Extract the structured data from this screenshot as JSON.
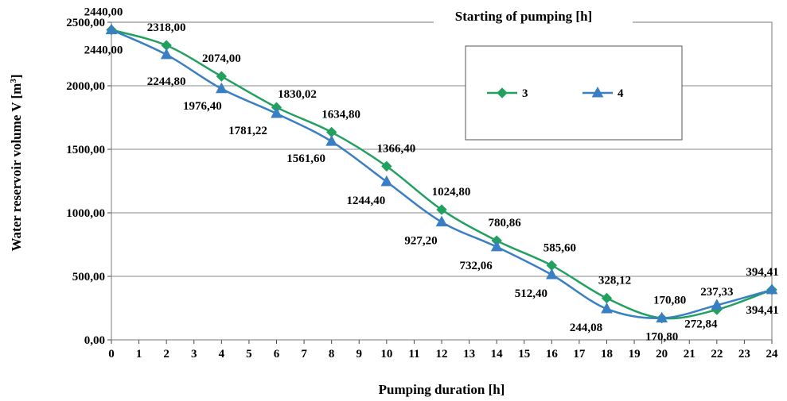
{
  "chart_data": {
    "type": "line",
    "title": "Starting of pumping [h]",
    "xlabel": "Pumping duration [h]",
    "ylabel": "Water reservoir volume V [m3]",
    "ylabel_main": "Water reservoir volume V [m",
    "ylabel_sup": "3",
    "ylabel_end": "]",
    "xlim": [
      0,
      24
    ],
    "ylim": [
      0,
      2500
    ],
    "x_ticks": [
      "0",
      "1",
      "2",
      "3",
      "4",
      "5",
      "6",
      "7",
      "8",
      "9",
      "10",
      "11",
      "12",
      "13",
      "14",
      "15",
      "16",
      "17",
      "18",
      "19",
      "20",
      "21",
      "22",
      "23",
      "24"
    ],
    "y_ticks": [
      "0,00",
      "500,00",
      "1000,00",
      "1500,00",
      "2000,00",
      "2500,00"
    ],
    "y_tick_values": [
      0,
      500,
      1000,
      1500,
      2000,
      2500
    ],
    "grid": "horizontal",
    "legend_position": "top-right",
    "x": [
      0,
      2,
      4,
      6,
      8,
      10,
      12,
      14,
      16,
      18,
      20,
      22,
      24
    ],
    "series": [
      {
        "name": "3",
        "color": "#22a060",
        "marker": "diamond",
        "values": [
          2440.0,
          2318.0,
          2074.0,
          1830.02,
          1634.8,
          1366.4,
          1024.8,
          780.86,
          585.6,
          328.12,
          170.8,
          237.33,
          394.41
        ],
        "labels": [
          "2440,00",
          "2318,00",
          "2074,00",
          "1830,02",
          "1634,80",
          "1366,40",
          "1024,80",
          "780,86",
          "585,60",
          "328,12",
          "170,80",
          "237,33",
          "394,41"
        ]
      },
      {
        "name": "4",
        "color": "#3a7fc4",
        "marker": "triangle",
        "values": [
          2440.0,
          2244.8,
          1976.4,
          1781.22,
          1561.6,
          1244.4,
          927.2,
          732.06,
          512.4,
          244.08,
          170.8,
          272.84,
          394.41
        ],
        "labels": [
          "2440,00",
          "2244,80",
          "1976,40",
          "1781,22",
          "1561,60",
          "1244,40",
          "927,20",
          "732,06",
          "512,40",
          "244,08",
          "170,80",
          "272,84",
          "394,41"
        ]
      }
    ]
  }
}
